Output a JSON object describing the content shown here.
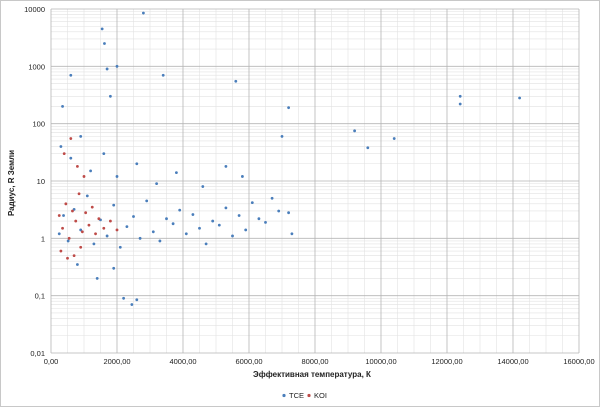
{
  "chart_data": {
    "type": "scatter",
    "title": "",
    "xlabel": "Эффективная  температура,  К",
    "ylabel": "Радиус, R Земли",
    "x_scale": "linear",
    "y_scale": "log",
    "xlim": [
      0,
      16000
    ],
    "ylim": [
      0.01,
      10000
    ],
    "x_ticks": [
      0,
      2000,
      4000,
      6000,
      8000,
      10000,
      12000,
      14000,
      16000
    ],
    "x_tick_labels": [
      "0,00",
      "2000,00",
      "4000,00",
      "6000,00",
      "8000,00",
      "10000,00",
      "12000,00",
      "14000,00",
      "16000,00"
    ],
    "y_ticks": [
      0.01,
      0.1,
      1,
      10,
      100,
      1000,
      10000
    ],
    "y_tick_labels": [
      "0,01",
      "0,1",
      "1",
      "10",
      "100",
      "1000",
      "10000"
    ],
    "grid": true,
    "legend_position": "bottom",
    "series": [
      {
        "name": "TCE",
        "color": "#4a7ebb",
        "points": [
          [
            250,
            1.2
          ],
          [
            380,
            2.5
          ],
          [
            520,
            0.9
          ],
          [
            700,
            3.2
          ],
          [
            900,
            1.4
          ],
          [
            1100,
            5.5
          ],
          [
            1300,
            0.8
          ],
          [
            1500,
            2.1
          ],
          [
            1700,
            1.1
          ],
          [
            1900,
            3.8
          ],
          [
            2100,
            0.7
          ],
          [
            2300,
            1.6
          ],
          [
            2500,
            2.4
          ],
          [
            2700,
            1.0
          ],
          [
            2900,
            4.5
          ],
          [
            3100,
            1.3
          ],
          [
            3300,
            0.9
          ],
          [
            3500,
            2.2
          ],
          [
            3700,
            1.8
          ],
          [
            3900,
            3.1
          ],
          [
            4100,
            1.2
          ],
          [
            4300,
            2.6
          ],
          [
            4500,
            1.5
          ],
          [
            4700,
            0.8
          ],
          [
            4900,
            2.0
          ],
          [
            5100,
            1.7
          ],
          [
            5300,
            3.4
          ],
          [
            5500,
            1.1
          ],
          [
            5700,
            2.5
          ],
          [
            5900,
            1.4
          ],
          [
            6100,
            4.2
          ],
          [
            6300,
            2.2
          ],
          [
            6500,
            1.9
          ],
          [
            6700,
            5.0
          ],
          [
            6900,
            3.0
          ],
          [
            7200,
            2.8
          ],
          [
            300,
            40
          ],
          [
            600,
            25
          ],
          [
            900,
            60
          ],
          [
            1200,
            15
          ],
          [
            1600,
            30
          ],
          [
            2000,
            12
          ],
          [
            2600,
            20
          ],
          [
            3200,
            9
          ],
          [
            3800,
            14
          ],
          [
            4600,
            8
          ],
          [
            5300,
            18
          ],
          [
            5800,
            12
          ],
          [
            1550,
            4500
          ],
          [
            1620,
            2500
          ],
          [
            1700,
            900
          ],
          [
            1800,
            300
          ],
          [
            2000,
            1000
          ],
          [
            2800,
            8500
          ],
          [
            5600,
            550
          ],
          [
            3400,
            700
          ],
          [
            2200,
            0.09
          ],
          [
            2450,
            0.07
          ],
          [
            2600,
            0.085
          ],
          [
            1400,
            0.2
          ],
          [
            1900,
            0.3
          ],
          [
            800,
            0.35
          ],
          [
            600,
            700
          ],
          [
            350,
            200
          ],
          [
            7200,
            190
          ],
          [
            7300,
            1.2
          ],
          [
            7000,
            60
          ],
          [
            9200,
            75
          ],
          [
            9600,
            38
          ],
          [
            10400,
            55
          ],
          [
            12400,
            300
          ],
          [
            12400,
            220
          ],
          [
            14200,
            280
          ]
        ]
      },
      {
        "name": "KOI",
        "color": "#be4b48",
        "points": [
          [
            250,
            2.5
          ],
          [
            350,
            1.5
          ],
          [
            450,
            4.0
          ],
          [
            550,
            1.0
          ],
          [
            650,
            3.0
          ],
          [
            750,
            2.0
          ],
          [
            850,
            6.0
          ],
          [
            950,
            1.3
          ],
          [
            1050,
            2.8
          ],
          [
            1150,
            1.7
          ],
          [
            1250,
            3.5
          ],
          [
            1350,
            1.2
          ],
          [
            1450,
            2.2
          ],
          [
            1600,
            1.5
          ],
          [
            1800,
            2.0
          ],
          [
            2000,
            1.4
          ],
          [
            400,
            30
          ],
          [
            600,
            55
          ],
          [
            800,
            18
          ],
          [
            1000,
            12
          ],
          [
            300,
            0.6
          ],
          [
            500,
            0.45
          ],
          [
            700,
            0.5
          ],
          [
            900,
            0.7
          ]
        ]
      }
    ]
  }
}
